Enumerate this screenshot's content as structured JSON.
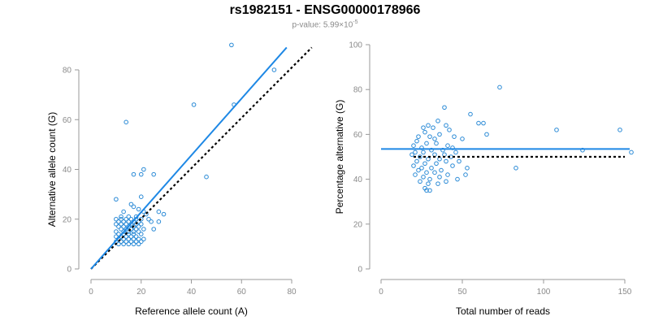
{
  "title": "rs1982151 - ENSG00000178966",
  "subtitle": {
    "prefix": "p-value: 5.99×10",
    "exponent": "-5"
  },
  "colors": {
    "points": "#2a8ad6",
    "fit": "#1e88e5",
    "reference": "#000000",
    "axis": "#999999"
  },
  "chart_data": [
    {
      "type": "scatter",
      "name": "left",
      "xlabel": "Reference allele count (A)",
      "ylabel": "Alternative allele count (G)",
      "xlim": [
        0,
        80
      ],
      "ylim": [
        0,
        80
      ],
      "xticks": [
        0,
        20,
        40,
        60,
        80
      ],
      "yticks": [
        0,
        20,
        40,
        60,
        80
      ],
      "fit_line": {
        "x": [
          0,
          78
        ],
        "y": [
          0,
          89
        ]
      },
      "reference_line": {
        "x": [
          0,
          88
        ],
        "y": [
          0,
          89
        ]
      },
      "points": [
        [
          56,
          90
        ],
        [
          73,
          80
        ],
        [
          41,
          66
        ],
        [
          57,
          66
        ],
        [
          14,
          59
        ],
        [
          21,
          40
        ],
        [
          20,
          38
        ],
        [
          17,
          38
        ],
        [
          25,
          38
        ],
        [
          46,
          37
        ],
        [
          20,
          29
        ],
        [
          10,
          28
        ],
        [
          16,
          26
        ],
        [
          17,
          25
        ],
        [
          19,
          24
        ],
        [
          27,
          23
        ],
        [
          29,
          22
        ],
        [
          21,
          23
        ],
        [
          13,
          23
        ],
        [
          12,
          21
        ],
        [
          15,
          21
        ],
        [
          18,
          21
        ],
        [
          22,
          22
        ],
        [
          10,
          20
        ],
        [
          12,
          20
        ],
        [
          14,
          20
        ],
        [
          16,
          20
        ],
        [
          18,
          20
        ],
        [
          20,
          20
        ],
        [
          23,
          20
        ],
        [
          11,
          19
        ],
        [
          13,
          19
        ],
        [
          15,
          19
        ],
        [
          17,
          19
        ],
        [
          19,
          19
        ],
        [
          24,
          19
        ],
        [
          27,
          19
        ],
        [
          10,
          18
        ],
        [
          12,
          18
        ],
        [
          14,
          18
        ],
        [
          16,
          18
        ],
        [
          18,
          18
        ],
        [
          20,
          18
        ],
        [
          11,
          17
        ],
        [
          13,
          17
        ],
        [
          15,
          17
        ],
        [
          17,
          17
        ],
        [
          19,
          17
        ],
        [
          12,
          16
        ],
        [
          14,
          16
        ],
        [
          16,
          16
        ],
        [
          18,
          16
        ],
        [
          21,
          16
        ],
        [
          25,
          16
        ],
        [
          10,
          15
        ],
        [
          13,
          15
        ],
        [
          15,
          15
        ],
        [
          17,
          15
        ],
        [
          19,
          15
        ],
        [
          11,
          14
        ],
        [
          13,
          14
        ],
        [
          15,
          14
        ],
        [
          17,
          14
        ],
        [
          20,
          14
        ],
        [
          10,
          13
        ],
        [
          12,
          13
        ],
        [
          14,
          13
        ],
        [
          16,
          13
        ],
        [
          18,
          13
        ],
        [
          11,
          12
        ],
        [
          13,
          12
        ],
        [
          15,
          12
        ],
        [
          17,
          12
        ],
        [
          19,
          12
        ],
        [
          21,
          12
        ],
        [
          10,
          11
        ],
        [
          12,
          11
        ],
        [
          14,
          11
        ],
        [
          16,
          11
        ],
        [
          18,
          11
        ],
        [
          20,
          11
        ],
        [
          11,
          10
        ],
        [
          13,
          10
        ],
        [
          15,
          10
        ],
        [
          17,
          10
        ],
        [
          19,
          10
        ]
      ]
    },
    {
      "type": "scatter",
      "name": "right",
      "xlabel": "Total number of reads",
      "ylabel": "Percentage alternative (G)",
      "xlim": [
        0,
        150
      ],
      "ylim": [
        0,
        100
      ],
      "xticks": [
        0,
        50,
        100,
        150
      ],
      "yticks": [
        0,
        20,
        40,
        60,
        80,
        100
      ],
      "fit_line": {
        "x": [
          0,
          153
        ],
        "y": [
          53.5,
          53.5
        ]
      },
      "reference_line": {
        "x": [
          20,
          150
        ],
        "y": [
          50,
          50
        ]
      },
      "points": [
        [
          73,
          81
        ],
        [
          39,
          72
        ],
        [
          55,
          69
        ],
        [
          35,
          66
        ],
        [
          40,
          64
        ],
        [
          29,
          64
        ],
        [
          26,
          63
        ],
        [
          32,
          63
        ],
        [
          60,
          65
        ],
        [
          63,
          65
        ],
        [
          42,
          62
        ],
        [
          108,
          62
        ],
        [
          147,
          62
        ],
        [
          27,
          61
        ],
        [
          36,
          60
        ],
        [
          23,
          59
        ],
        [
          30,
          59
        ],
        [
          33,
          58
        ],
        [
          45,
          59
        ],
        [
          65,
          60
        ],
        [
          22,
          57
        ],
        [
          28,
          56
        ],
        [
          34,
          56
        ],
        [
          41,
          55
        ],
        [
          50,
          58
        ],
        [
          20,
          55
        ],
        [
          25,
          54
        ],
        [
          31,
          53
        ],
        [
          38,
          53
        ],
        [
          44,
          54
        ],
        [
          21,
          52
        ],
        [
          26,
          52
        ],
        [
          33,
          51
        ],
        [
          39,
          51
        ],
        [
          46,
          52
        ],
        [
          124,
          53
        ],
        [
          154,
          52
        ],
        [
          19,
          51
        ],
        [
          24,
          50
        ],
        [
          29,
          49
        ],
        [
          36,
          49
        ],
        [
          43,
          50
        ],
        [
          22,
          48
        ],
        [
          27,
          47
        ],
        [
          34,
          47
        ],
        [
          40,
          48
        ],
        [
          48,
          48
        ],
        [
          20,
          46
        ],
        [
          25,
          45
        ],
        [
          31,
          45
        ],
        [
          37,
          44
        ],
        [
          44,
          46
        ],
        [
          23,
          44
        ],
        [
          28,
          43
        ],
        [
          33,
          43
        ],
        [
          41,
          42
        ],
        [
          53,
          45
        ],
        [
          83,
          45
        ],
        [
          21,
          42
        ],
        [
          26,
          41
        ],
        [
          30,
          40
        ],
        [
          36,
          41
        ],
        [
          47,
          40
        ],
        [
          24,
          39
        ],
        [
          29,
          38
        ],
        [
          35,
          38
        ],
        [
          40,
          39
        ],
        [
          52,
          42
        ],
        [
          27,
          36
        ],
        [
          28,
          35
        ],
        [
          30,
          35
        ]
      ]
    }
  ]
}
